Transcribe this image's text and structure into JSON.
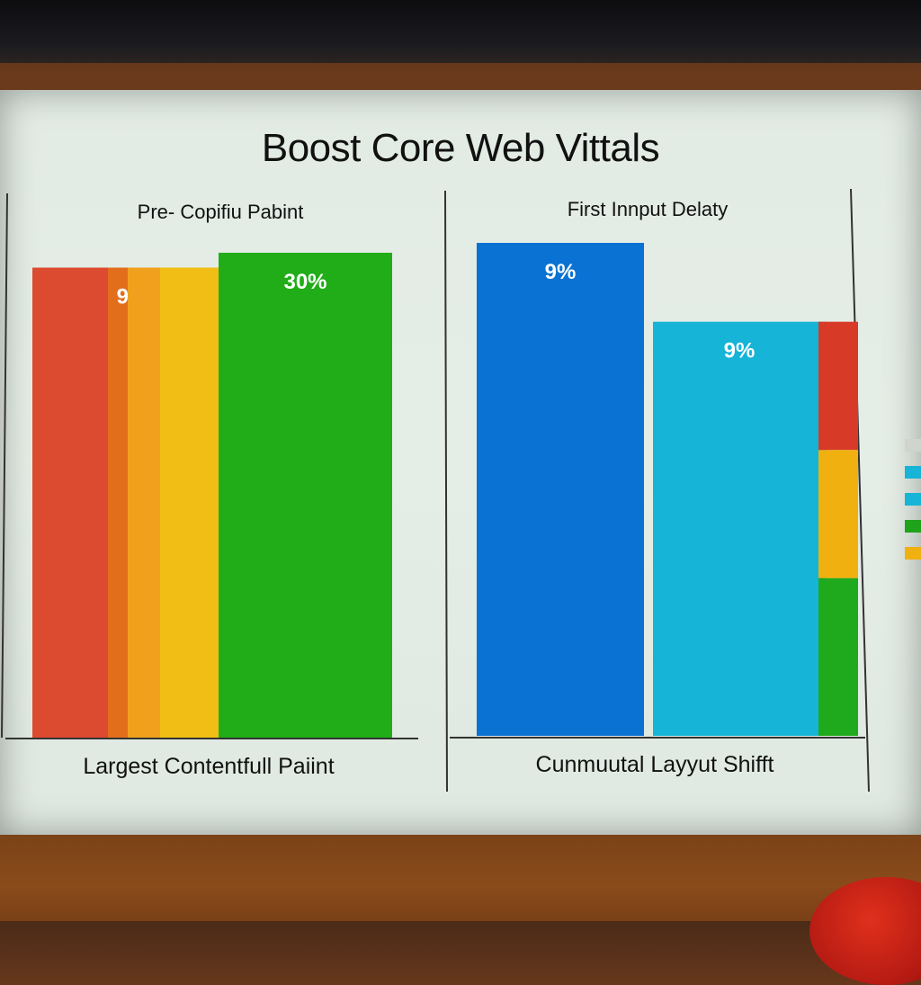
{
  "slide": {
    "title": "Boost Core Web Vittals"
  },
  "chart_data": [
    {
      "type": "bar",
      "title": "Pre- Copifiu Pabint",
      "xlabel": "Largest Contentfull Paiint",
      "ylabel": "",
      "ylim": [
        0,
        100
      ],
      "stacked_columns": true,
      "series": [
        {
          "color": "#dc4a30",
          "values": [
            95
          ]
        },
        {
          "color": "#e26e1c",
          "values": [
            95
          ],
          "label": "9%"
        },
        {
          "color": "#f0a01c",
          "values": [
            95
          ]
        },
        {
          "color": "#f0be14",
          "values": [
            95
          ]
        },
        {
          "color": "#20ad18",
          "values": [
            98
          ],
          "label": "30%"
        }
      ]
    },
    {
      "type": "bar",
      "title": "First Innput Delaty",
      "xlabel": "Cunmuutal Layyut Shifft",
      "ylabel": "",
      "ylim": [
        0,
        100
      ],
      "series": [
        {
          "color": "#0a72d2",
          "values": [
            100
          ],
          "label": "9%"
        },
        {
          "color": "#16b4d6",
          "values": [
            84
          ],
          "label": "9%"
        },
        {
          "color": "#d83a28",
          "values": [
            26
          ],
          "stack_part": "top"
        },
        {
          "color": "#f0b010",
          "values": [
            26
          ],
          "stack_part": "middle"
        },
        {
          "color": "#1faa1e",
          "values": [
            32
          ],
          "stack_part": "bottom"
        }
      ]
    }
  ],
  "legend": {
    "colors": [
      "#cfd4cc",
      "#16b4d6",
      "#16b4d6",
      "#1ea31a",
      "#f0b010"
    ]
  }
}
